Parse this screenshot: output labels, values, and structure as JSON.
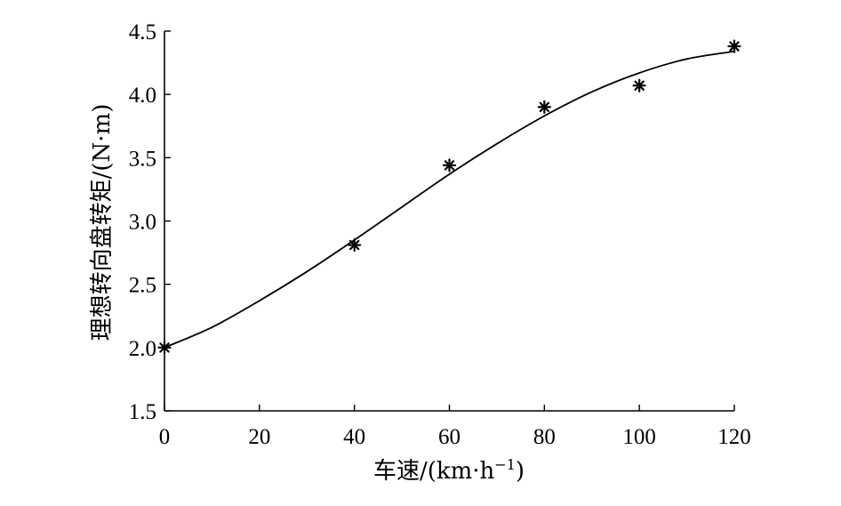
{
  "chart_data": {
    "type": "scatter",
    "xlabel": "车速/(km·h",
    "xlabel_sup": "−1",
    "xlabel_close": ")",
    "ylabel": "理想转向盘转矩/(N·m)",
    "xlim": [
      0,
      120
    ],
    "ylim": [
      1.5,
      4.5
    ],
    "xticks": [
      "0",
      "20",
      "40",
      "60",
      "80",
      "100",
      "120"
    ],
    "yticks": [
      "1.5",
      "2.0",
      "2.5",
      "3.0",
      "3.5",
      "4.0",
      "4.5"
    ],
    "grid": false,
    "series": [
      {
        "marker": "asterisk",
        "x": [
          0,
          40,
          60,
          80,
          100,
          120
        ],
        "y": [
          2.0,
          2.81,
          3.44,
          3.9,
          4.07,
          4.38
        ]
      },
      {
        "line": "solid",
        "x": [
          0,
          10,
          20,
          30,
          40,
          50,
          60,
          70,
          80,
          90,
          100,
          110,
          120
        ],
        "y": [
          2.0,
          2.16,
          2.37,
          2.6,
          2.85,
          3.11,
          3.37,
          3.61,
          3.83,
          4.02,
          4.17,
          4.28,
          4.34
        ]
      }
    ]
  }
}
